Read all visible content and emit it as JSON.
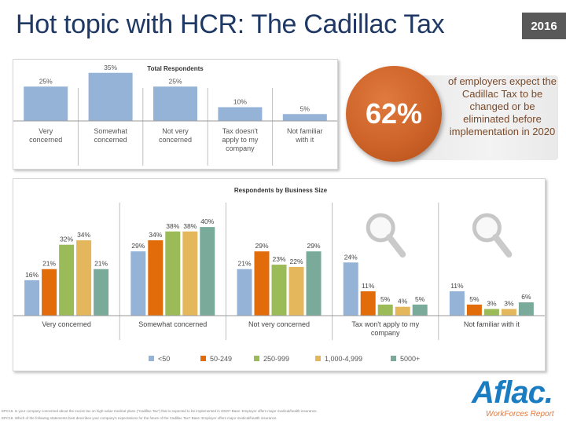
{
  "header": {
    "title": "Hot topic with HCR: The Cadillac Tax",
    "year_badge": "2016"
  },
  "callout": {
    "stat": "62%",
    "text": "of employers expect the Cadillac Tax to be changed or be eliminated before implementation in 2020"
  },
  "footnotes": [
    "EPC15. Is your company concerned about the excise tax on high-value medical plans (\"Cadillac Tax\") that is expected to be implemented in 2020? Base: Employer offers major medical/health insurance.",
    "EPC16. Which of the following statements best describes your company's expectations for the future of the Cadillac Tax? Base: Employer offers major medical/health insurance."
  ],
  "logo": {
    "word": "Aflac.",
    "sub": "WorkForces Report"
  },
  "colors": {
    "title": "#1f3864",
    "bar_top": "#95b3d7",
    "orange": "#cd6328"
  },
  "chart_data": [
    {
      "type": "bar",
      "title": "Total Respondents",
      "categories": [
        "Very concerned",
        "Somewhat concerned",
        "Not very concerned",
        "Tax doesn't apply to my company",
        "Not familiar with it"
      ],
      "values": [
        25,
        35,
        25,
        10,
        5
      ],
      "labels": [
        "25%",
        "35%",
        "25%",
        "10%",
        "5%"
      ],
      "ylim": [
        0,
        40
      ]
    },
    {
      "type": "bar",
      "title": "Respondents by Business Size",
      "categories": [
        "Very concerned",
        "Somewhat concerned",
        "Not very concerned",
        "Tax won't apply to my company",
        "Not familiar with it"
      ],
      "series": [
        {
          "name": "<50",
          "color": "#95b3d7",
          "values": [
            16,
            29,
            21,
            24,
            11
          ],
          "labels": [
            "16%",
            "29%",
            "21%",
            "24%",
            "11%"
          ]
        },
        {
          "name": "50-249",
          "color": "#e26b0a",
          "values": [
            21,
            34,
            29,
            11,
            5
          ],
          "labels": [
            "21%",
            "34%",
            "29%",
            "11%",
            "5%"
          ]
        },
        {
          "name": "250-999",
          "color": "#9bbb59",
          "values": [
            32,
            38,
            23,
            5,
            3
          ],
          "labels": [
            "32%",
            "38%",
            "23%",
            "5%",
            "3%"
          ]
        },
        {
          "name": "1,000-4,999",
          "color": "#e4b75c",
          "values": [
            34,
            38,
            22,
            4,
            3
          ],
          "labels": [
            "34%",
            "38%",
            "22%",
            "4%",
            "3%"
          ]
        },
        {
          "name": "5000+",
          "color": "#7aab9a",
          "values": [
            21,
            40,
            29,
            5,
            6
          ],
          "labels": [
            "21%",
            "40%",
            "29%",
            "5%",
            "6%"
          ]
        }
      ],
      "ylim": [
        0,
        45
      ]
    }
  ]
}
